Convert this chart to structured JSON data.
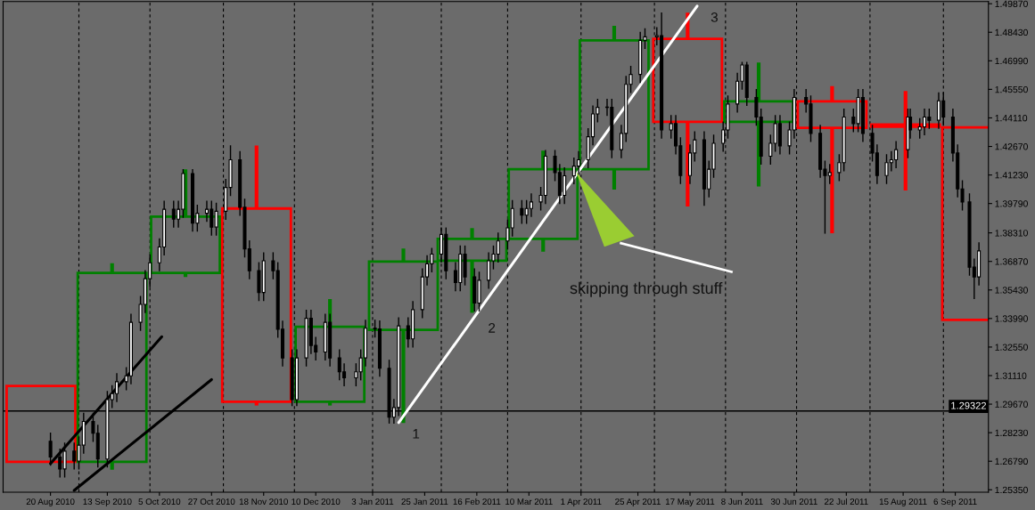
{
  "chart_data": {
    "type": "candlestick",
    "xlim": [
      "2010-07-31",
      "2011-09-20"
    ],
    "xticks": [
      {
        "value": "2010-08-20",
        "label": "20 Aug 2010"
      },
      {
        "value": "2010-09-13",
        "label": "13 Sep 2010"
      },
      {
        "value": "2010-10-05",
        "label": "5 Oct 2010"
      },
      {
        "value": "2010-10-27",
        "label": "27 Oct 2010"
      },
      {
        "value": "2010-11-18",
        "label": "18 Nov 2010"
      },
      {
        "value": "2010-12-10",
        "label": "10 Dec 2010"
      },
      {
        "value": "2011-01-03",
        "label": "3 Jan 2011"
      },
      {
        "value": "2011-01-25",
        "label": "25 Jan 2011"
      },
      {
        "value": "2011-02-16",
        "label": "16 Feb 2011"
      },
      {
        "value": "2011-03-10",
        "label": "10 Mar 2011"
      },
      {
        "value": "2011-04-01",
        "label": "1 Apr 2011"
      },
      {
        "value": "2011-04-25",
        "label": "25 Apr 2011"
      },
      {
        "value": "2011-05-17",
        "label": "17 May 2011"
      },
      {
        "value": "2011-06-08",
        "label": "8 Jun 2011"
      },
      {
        "value": "2011-06-30",
        "label": "30 Jun 2011"
      },
      {
        "value": "2011-07-22",
        "label": "22 Jul 2011"
      },
      {
        "value": "2011-08-15",
        "label": "15 Aug 2011"
      },
      {
        "value": "2011-09-06",
        "label": "6 Sep 2011"
      }
    ],
    "ylim": [
      1.2523,
      1.4998
    ],
    "yticks": [
      {
        "value": 1.4987,
        "label": "1.49870"
      },
      {
        "value": 1.4843,
        "label": "1.48430"
      },
      {
        "value": 1.4699,
        "label": "1.46990"
      },
      {
        "value": 1.4555,
        "label": "1.45550"
      },
      {
        "value": 1.4411,
        "label": "1.44110"
      },
      {
        "value": 1.4267,
        "label": "1.42670"
      },
      {
        "value": 1.4123,
        "label": "1.41230"
      },
      {
        "value": 1.3979,
        "label": "1.39790"
      },
      {
        "value": 1.3831,
        "label": "1.38310"
      },
      {
        "value": 1.3687,
        "label": "1.36870"
      },
      {
        "value": 1.3543,
        "label": "1.35430"
      },
      {
        "value": 1.3399,
        "label": "1.33990"
      },
      {
        "value": 1.3255,
        "label": "1.32550"
      },
      {
        "value": 1.3111,
        "label": "1.31110"
      },
      {
        "value": 1.2967,
        "label": "1.29670"
      },
      {
        "value": 1.2823,
        "label": "1.28230"
      },
      {
        "value": 1.2679,
        "label": "1.26790"
      },
      {
        "value": 1.2535,
        "label": "1.25350"
      }
    ],
    "grid": false,
    "series": [
      {
        "type": "candlestick",
        "x": [
          "2010-08-16",
          "2010-09-15",
          "2010-10-16",
          "2010-11-15",
          "2010-12-16",
          "2011-01-16",
          "2011-02-14",
          "2011-03-16",
          "2011-04-15",
          "2011-05-16",
          "2011-06-15",
          "2011-07-16",
          "2011-08-16",
          "2011-09-15"
        ],
        "ohlc": [
          [
            1.3059,
            1.3059,
            1.2676,
            1.2676
          ],
          [
            1.2676,
            1.3678,
            1.2636,
            1.3629
          ],
          [
            1.3629,
            1.4152,
            1.3608,
            1.3913
          ],
          [
            1.3954,
            1.4272,
            1.296,
            1.2979
          ],
          [
            1.2979,
            1.3497,
            1.296,
            1.3357
          ],
          [
            1.3342,
            1.3752,
            1.2872,
            1.3686
          ],
          [
            1.3691,
            1.3855,
            1.3428,
            1.3801
          ],
          [
            1.3801,
            1.4246,
            1.3736,
            1.4152
          ],
          [
            1.4152,
            1.4876,
            1.4049,
            1.4802
          ],
          [
            1.481,
            1.4942,
            1.3964,
            1.4391
          ],
          [
            1.4391,
            1.469,
            1.4065,
            1.4494
          ],
          [
            1.4494,
            1.4571,
            1.3829,
            1.4361
          ],
          [
            1.4378,
            1.4547,
            1.4045,
            1.4366
          ],
          [
            1.4363,
            1.4363,
            1.3392,
            1.3392
          ]
        ],
        "colors": [
          "#ff0000",
          "#008000",
          "#008000",
          "#ff0000",
          "#008000",
          "#008000",
          "#008000",
          "#008000",
          "#008000",
          "#ff0000",
          "#008000",
          "#ff0000",
          "#ff0000",
          "#ff0000"
        ]
      },
      {
        "type": "candlestick",
        "color": "#000000",
        "x": [
          "2010-08-20",
          "2010-08-24",
          "2010-08-26",
          "2010-08-30",
          "2010-09-01",
          "2010-09-03",
          "2010-09-07",
          "2010-09-09",
          "2010-09-13",
          "2010-09-15",
          "2010-09-17",
          "2010-09-21",
          "2010-09-23",
          "2010-09-27",
          "2010-09-29",
          "2010-10-01",
          "2010-10-05",
          "2010-10-07",
          "2010-10-11",
          "2010-10-13",
          "2010-10-15",
          "2010-10-19",
          "2010-10-21",
          "2010-10-25",
          "2010-10-27",
          "2010-10-29",
          "2010-11-02",
          "2010-11-04",
          "2010-11-08",
          "2010-11-10",
          "2010-11-12",
          "2010-11-16",
          "2010-11-18",
          "2010-11-22",
          "2010-11-24",
          "2010-11-26",
          "2010-11-30",
          "2010-12-02",
          "2010-12-06",
          "2010-12-08",
          "2010-12-10",
          "2010-12-14",
          "2010-12-16",
          "2010-12-20",
          "2010-12-22",
          "2010-12-27",
          "2010-12-29",
          "2010-12-31",
          "2011-01-04",
          "2011-01-06",
          "2011-01-10",
          "2011-01-12",
          "2011-01-14",
          "2011-01-18",
          "2011-01-20",
          "2011-01-24",
          "2011-01-26",
          "2011-01-28",
          "2011-02-01",
          "2011-02-03",
          "2011-02-07",
          "2011-02-09",
          "2011-02-11",
          "2011-02-15",
          "2011-02-17",
          "2011-02-21",
          "2011-02-23",
          "2011-02-25",
          "2011-03-01",
          "2011-03-03",
          "2011-03-07",
          "2011-03-09",
          "2011-03-11",
          "2011-03-15",
          "2011-03-17",
          "2011-03-21",
          "2011-03-23",
          "2011-03-25",
          "2011-03-29",
          "2011-03-31",
          "2011-04-04",
          "2011-04-06",
          "2011-04-08",
          "2011-04-12",
          "2011-04-14",
          "2011-04-18",
          "2011-04-20",
          "2011-04-22",
          "2011-04-26",
          "2011-04-28",
          "2011-05-03",
          "2011-05-05",
          "2011-05-09",
          "2011-05-11",
          "2011-05-13",
          "2011-05-17",
          "2011-05-19",
          "2011-05-23",
          "2011-05-25",
          "2011-05-27",
          "2011-05-31",
          "2011-06-02",
          "2011-06-06",
          "2011-06-08",
          "2011-06-10",
          "2011-06-14",
          "2011-06-16",
          "2011-06-20",
          "2011-06-22",
          "2011-06-24",
          "2011-06-28",
          "2011-06-30",
          "2011-07-05",
          "2011-07-07",
          "2011-07-11",
          "2011-07-13",
          "2011-07-15",
          "2011-07-19",
          "2011-07-21",
          "2011-07-25",
          "2011-07-27",
          "2011-07-29",
          "2011-08-02",
          "2011-08-04",
          "2011-08-08",
          "2011-08-10",
          "2011-08-12",
          "2011-08-17",
          "2011-08-18",
          "2011-08-22",
          "2011-08-24",
          "2011-08-26",
          "2011-08-30",
          "2011-09-01",
          "2011-09-05",
          "2011-09-07",
          "2011-09-09",
          "2011-09-12",
          "2011-09-14",
          "2011-09-16"
        ],
        "ohlc": [
          [
            1.278,
            1.282,
            1.266,
            1.27
          ],
          [
            1.27,
            1.274,
            1.26,
            1.264
          ],
          [
            1.264,
            1.277,
            1.26,
            1.273
          ],
          [
            1.273,
            1.277,
            1.264,
            1.268
          ],
          [
            1.268,
            1.28,
            1.264,
            1.276
          ],
          [
            1.276,
            1.292,
            1.272,
            1.288
          ],
          [
            1.288,
            1.292,
            1.278,
            1.282
          ],
          [
            1.282,
            1.286,
            1.265,
            1.269
          ],
          [
            1.269,
            1.303,
            1.265,
            1.299
          ],
          [
            1.299,
            1.306,
            1.295,
            1.302
          ],
          [
            1.302,
            1.312,
            1.298,
            1.308
          ],
          [
            1.308,
            1.315,
            1.304,
            1.311
          ],
          [
            1.311,
            1.342,
            1.307,
            1.338
          ],
          [
            1.338,
            1.351,
            1.334,
            1.347
          ],
          [
            1.347,
            1.364,
            1.343,
            1.36
          ],
          [
            1.36,
            1.372,
            1.356,
            1.368
          ],
          [
            1.368,
            1.38,
            1.364,
            1.376
          ],
          [
            1.376,
            1.399,
            1.372,
            1.395
          ],
          [
            1.395,
            1.399,
            1.386,
            1.39
          ],
          [
            1.39,
            1.399,
            1.386,
            1.395
          ],
          [
            1.395,
            1.415,
            1.391,
            1.413
          ],
          [
            1.413,
            1.415,
            1.384,
            1.388
          ],
          [
            1.388,
            1.397,
            1.384,
            1.393
          ],
          [
            1.393,
            1.399,
            1.389,
            1.395
          ],
          [
            1.395,
            1.399,
            1.382,
            1.386
          ],
          [
            1.386,
            1.398,
            1.382,
            1.394
          ],
          [
            1.394,
            1.41,
            1.39,
            1.406
          ],
          [
            1.406,
            1.427,
            1.402,
            1.42
          ],
          [
            1.42,
            1.424,
            1.392,
            1.396
          ],
          [
            1.396,
            1.4,
            1.371,
            1.375
          ],
          [
            1.375,
            1.379,
            1.36,
            1.364
          ],
          [
            1.364,
            1.368,
            1.349,
            1.353
          ],
          [
            1.353,
            1.373,
            1.349,
            1.369
          ],
          [
            1.369,
            1.373,
            1.36,
            1.364
          ],
          [
            1.364,
            1.368,
            1.3305,
            1.3345
          ],
          [
            1.3345,
            1.3385,
            1.316,
            1.32
          ],
          [
            1.32,
            1.324,
            1.296,
            1.299
          ],
          [
            1.299,
            1.324,
            1.296,
            1.32
          ],
          [
            1.32,
            1.344,
            1.316,
            1.34
          ],
          [
            1.34,
            1.344,
            1.3223,
            1.3263
          ],
          [
            1.3263,
            1.3303,
            1.319,
            1.323
          ],
          [
            1.323,
            1.342,
            1.319,
            1.338
          ],
          [
            1.338,
            1.342,
            1.316,
            1.32
          ],
          [
            1.32,
            1.324,
            1.309,
            1.313
          ],
          [
            1.313,
            1.317,
            1.306,
            1.31
          ],
          [
            1.31,
            1.317,
            1.306,
            1.313
          ],
          [
            1.313,
            1.324,
            1.309,
            1.32
          ],
          [
            1.32,
            1.339,
            1.316,
            1.335
          ],
          [
            1.335,
            1.339,
            1.3306,
            1.3346
          ],
          [
            1.3346,
            1.3386,
            1.3108,
            1.3148
          ],
          [
            1.3148,
            1.3188,
            1.2872,
            1.2901
          ],
          [
            1.2901,
            1.299,
            1.2872,
            1.295
          ],
          [
            1.295,
            1.3402,
            1.291,
            1.3362
          ],
          [
            1.3362,
            1.3402,
            1.3256,
            1.3296
          ],
          [
            1.3296,
            1.3484,
            1.3256,
            1.3444
          ],
          [
            1.3444,
            1.3649,
            1.3404,
            1.3609
          ],
          [
            1.3609,
            1.3715,
            1.3569,
            1.3675
          ],
          [
            1.3675,
            1.3752,
            1.3635,
            1.3724
          ],
          [
            1.3724,
            1.3855,
            1.3684,
            1.3823
          ],
          [
            1.3823,
            1.3855,
            1.36,
            1.364
          ],
          [
            1.364,
            1.368,
            1.354,
            1.358
          ],
          [
            1.358,
            1.3764,
            1.354,
            1.3724
          ],
          [
            1.3724,
            1.3764,
            1.3569,
            1.3609
          ],
          [
            1.3609,
            1.3649,
            1.3437,
            1.3477
          ],
          [
            1.3477,
            1.3632,
            1.3437,
            1.3592
          ],
          [
            1.3592,
            1.373,
            1.3552,
            1.369
          ],
          [
            1.369,
            1.3764,
            1.365,
            1.3724
          ],
          [
            1.3724,
            1.383,
            1.3684,
            1.379
          ],
          [
            1.379,
            1.3896,
            1.375,
            1.3856
          ],
          [
            1.3856,
            1.3994,
            1.3816,
            1.3954
          ],
          [
            1.3954,
            1.3994,
            1.388,
            1.392
          ],
          [
            1.392,
            1.3994,
            1.388,
            1.3954
          ],
          [
            1.3954,
            1.4027,
            1.3914,
            1.3987
          ],
          [
            1.3987,
            1.406,
            1.3947,
            1.402
          ],
          [
            1.402,
            1.4246,
            1.398,
            1.4218
          ],
          [
            1.4218,
            1.4246,
            1.4095,
            1.4135
          ],
          [
            1.4135,
            1.4175,
            1.398,
            1.402
          ],
          [
            1.402,
            1.4159,
            1.398,
            1.4119
          ],
          [
            1.4119,
            1.4208,
            1.4079,
            1.4168
          ],
          [
            1.4168,
            1.424,
            1.4128,
            1.42
          ],
          [
            1.42,
            1.4356,
            1.416,
            1.4316
          ],
          [
            1.4316,
            1.4471,
            1.4276,
            1.4431
          ],
          [
            1.4431,
            1.4504,
            1.4391,
            1.4464
          ],
          [
            1.4464,
            1.4504,
            1.4424,
            1.4464
          ],
          [
            1.4464,
            1.4504,
            1.4211,
            1.4251
          ],
          [
            1.4251,
            1.4373,
            1.4211,
            1.4333
          ],
          [
            1.4333,
            1.462,
            1.4293,
            1.458
          ],
          [
            1.458,
            1.467,
            1.454,
            1.463
          ],
          [
            1.463,
            1.4842,
            1.459,
            1.4802
          ],
          [
            1.4802,
            1.486,
            1.4762,
            1.482
          ],
          [
            1.482,
            1.4866,
            1.478,
            1.4826
          ],
          [
            1.4826,
            1.494,
            1.431,
            1.435
          ],
          [
            1.435,
            1.4422,
            1.431,
            1.4382
          ],
          [
            1.4382,
            1.4422,
            1.423,
            1.427
          ],
          [
            1.427,
            1.431,
            1.408,
            1.412
          ],
          [
            1.412,
            1.4274,
            1.408,
            1.4234
          ],
          [
            1.4234,
            1.434,
            1.4194,
            1.43
          ],
          [
            1.43,
            1.434,
            1.397,
            1.4053
          ],
          [
            1.4053,
            1.4192,
            1.4013,
            1.4152
          ],
          [
            1.4152,
            1.4323,
            1.4112,
            1.4283
          ],
          [
            1.4283,
            1.439,
            1.4243,
            1.435
          ],
          [
            1.435,
            1.4521,
            1.431,
            1.4481
          ],
          [
            1.4481,
            1.4636,
            1.4441,
            1.4596
          ],
          [
            1.4596,
            1.469,
            1.4556,
            1.4678
          ],
          [
            1.4678,
            1.469,
            1.4474,
            1.4514
          ],
          [
            1.4514,
            1.4554,
            1.4375,
            1.4415
          ],
          [
            1.4415,
            1.4455,
            1.4178,
            1.4218
          ],
          [
            1.4218,
            1.4323,
            1.4178,
            1.4283
          ],
          [
            1.4283,
            1.4422,
            1.4243,
            1.4382
          ],
          [
            1.4382,
            1.4422,
            1.423,
            1.427
          ],
          [
            1.427,
            1.439,
            1.423,
            1.435
          ],
          [
            1.435,
            1.4554,
            1.431,
            1.4514
          ],
          [
            1.4514,
            1.4554,
            1.4441,
            1.4481
          ],
          [
            1.4481,
            1.4521,
            1.4293,
            1.4333
          ],
          [
            1.4333,
            1.4373,
            1.4112,
            1.4152
          ],
          [
            1.4152,
            1.4192,
            1.383,
            1.412
          ],
          [
            1.412,
            1.4175,
            1.408,
            1.4135
          ],
          [
            1.4135,
            1.4225,
            1.4095,
            1.4185
          ],
          [
            1.4185,
            1.4455,
            1.4145,
            1.4415
          ],
          [
            1.4415,
            1.4455,
            1.4342,
            1.4382
          ],
          [
            1.4382,
            1.4554,
            1.4342,
            1.4514
          ],
          [
            1.4514,
            1.4554,
            1.4293,
            1.4333
          ],
          [
            1.4333,
            1.4373,
            1.4194,
            1.4234
          ],
          [
            1.4234,
            1.4274,
            1.408,
            1.412
          ],
          [
            1.412,
            1.4225,
            1.408,
            1.4185
          ],
          [
            1.4185,
            1.424,
            1.4145,
            1.42
          ],
          [
            1.42,
            1.4291,
            1.416,
            1.4251
          ],
          [
            1.4251,
            1.4455,
            1.4211,
            1.4415
          ],
          [
            1.4415,
            1.4455,
            1.431,
            1.435
          ],
          [
            1.435,
            1.4406,
            1.431,
            1.4366
          ],
          [
            1.4366,
            1.4455,
            1.4326,
            1.4415
          ],
          [
            1.4415,
            1.4455,
            1.4359,
            1.4399
          ],
          [
            1.4399,
            1.4537,
            1.4359,
            1.4497
          ],
          [
            1.4497,
            1.4537,
            1.4375,
            1.4415
          ],
          [
            1.4415,
            1.4455,
            1.4194,
            1.4234
          ],
          [
            1.4234,
            1.4274,
            1.4013,
            1.4053
          ],
          [
            1.4053,
            1.4093,
            1.3947,
            1.3987
          ],
          [
            1.3987,
            1.4027,
            1.3618,
            1.3658
          ],
          [
            1.3658,
            1.3698,
            1.35,
            1.3609
          ],
          [
            1.3609,
            1.378,
            1.3569,
            1.374
          ]
        ],
        "colors": [
          "#000000",
          "#000000",
          "#ffffff",
          "#000000",
          "#ffffff",
          "#ffffff",
          "#000000",
          "#000000",
          "#ffffff",
          "#ffffff",
          "#ffffff",
          "#ffffff",
          "#ffffff",
          "#ffffff",
          "#ffffff",
          "#ffffff",
          "#ffffff",
          "#ffffff",
          "#000000",
          "#ffffff",
          "#ffffff",
          "#000000",
          "#ffffff",
          "#ffffff",
          "#000000",
          "#ffffff",
          "#ffffff",
          "#ffffff",
          "#000000",
          "#000000",
          "#000000",
          "#000000",
          "#ffffff",
          "#000000",
          "#000000",
          "#000000",
          "#000000",
          "#ffffff",
          "#ffffff",
          "#000000",
          "#000000",
          "#ffffff",
          "#000000",
          "#000000",
          "#000000",
          "#ffffff",
          "#ffffff",
          "#ffffff",
          "#000000",
          "#000000",
          "#000000",
          "#ffffff",
          "#ffffff",
          "#000000",
          "#ffffff",
          "#ffffff",
          "#ffffff",
          "#ffffff",
          "#ffffff",
          "#000000",
          "#000000",
          "#ffffff",
          "#000000",
          "#000000",
          "#ffffff",
          "#ffffff",
          "#ffffff",
          "#ffffff",
          "#ffffff",
          "#ffffff",
          "#000000",
          "#ffffff",
          "#ffffff",
          "#ffffff",
          "#ffffff",
          "#000000",
          "#000000",
          "#ffffff",
          "#ffffff",
          "#ffffff",
          "#ffffff",
          "#ffffff",
          "#ffffff",
          "#ffffff",
          "#000000",
          "#ffffff",
          "#ffffff",
          "#ffffff",
          "#ffffff",
          "#ffffff",
          "#ffffff",
          "#000000",
          "#ffffff",
          "#000000",
          "#000000",
          "#ffffff",
          "#ffffff",
          "#000000",
          "#ffffff",
          "#ffffff",
          "#ffffff",
          "#ffffff",
          "#ffffff",
          "#ffffff",
          "#000000",
          "#000000",
          "#000000",
          "#ffffff",
          "#ffffff",
          "#000000",
          "#ffffff",
          "#ffffff",
          "#000000",
          "#000000",
          "#000000",
          "#000000",
          "#ffffff",
          "#ffffff",
          "#ffffff",
          "#000000",
          "#ffffff",
          "#000000",
          "#000000",
          "#000000",
          "#ffffff",
          "#ffffff",
          "#ffffff",
          "#ffffff",
          "#000000",
          "#ffffff",
          "#ffffff",
          "#000000",
          "#ffffff",
          "#000000",
          "#000000",
          "#000000",
          "#000000",
          "#000000",
          "#000000",
          "#ffffff"
        ]
      },
      {
        "type": "line",
        "color": "#000000",
        "x": [
          "2010-08-20",
          "2010-10-06"
        ],
        "values": [
          1.2667,
          1.3307
        ]
      },
      {
        "type": "line",
        "color": "#000000",
        "x": [
          "2010-08-30",
          "2010-10-27"
        ],
        "values": [
          1.2532,
          1.3091
        ]
      },
      {
        "type": "line",
        "color": "#ffffff",
        "x": [
          "2011-01-14",
          "2011-05-20"
        ],
        "values": [
          1.2874,
          1.4975
        ]
      }
    ],
    "ref_lines": [
      {
        "axis": "y",
        "value": 1.29322,
        "label": "1.29322",
        "color": "#000000",
        "line_style": "solid"
      },
      {
        "axis": "x",
        "value": "2010-09-01",
        "color": "#000000",
        "line_style": "dashed"
      },
      {
        "axis": "x",
        "value": "2010-10-01",
        "color": "#000000",
        "line_style": "dashed"
      },
      {
        "axis": "x",
        "value": "2010-11-01",
        "color": "#000000",
        "line_style": "dashed"
      },
      {
        "axis": "x",
        "value": "2010-12-01",
        "color": "#000000",
        "line_style": "dashed"
      },
      {
        "axis": "x",
        "value": "2011-01-03",
        "color": "#000000",
        "line_style": "dashed"
      },
      {
        "axis": "x",
        "value": "2011-02-01",
        "color": "#000000",
        "line_style": "dashed"
      },
      {
        "axis": "x",
        "value": "2011-03-01",
        "color": "#000000",
        "line_style": "dashed"
      },
      {
        "axis": "x",
        "value": "2011-04-01",
        "color": "#000000",
        "line_style": "dashed"
      },
      {
        "axis": "x",
        "value": "2011-05-02",
        "color": "#000000",
        "line_style": "dashed"
      },
      {
        "axis": "x",
        "value": "2011-06-01",
        "color": "#000000",
        "line_style": "dashed"
      },
      {
        "axis": "x",
        "value": "2011-07-01",
        "color": "#000000",
        "line_style": "dashed"
      },
      {
        "axis": "x",
        "value": "2011-08-01",
        "color": "#000000",
        "line_style": "dashed"
      },
      {
        "axis": "x",
        "value": "2011-09-01",
        "color": "#000000",
        "line_style": "dashed"
      }
    ],
    "annotations": [
      {
        "text": "1",
        "x": "2011-01-14",
        "y": 1.2874
      },
      {
        "text": "2",
        "x": "2011-02-15",
        "y": 1.3408
      },
      {
        "text": "3",
        "x": "2011-05-20",
        "y": 1.4975
      },
      "skipping through stuff"
    ],
    "legend": false
  }
}
